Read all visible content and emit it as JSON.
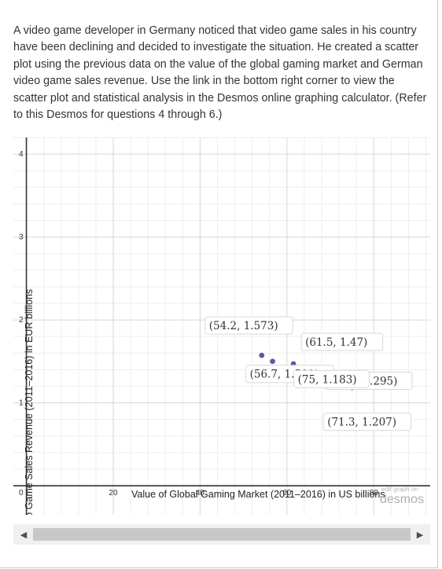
{
  "intro_text": "A video game developer in Germany noticed that video game sales in his country have been declining and decided to investigate the situation. He created a scatter plot using the previous data on the value of the global gaming market and German video game sales revenue. Use the link in the bottom right corner to view the scatter plot and statistical analysis in the Desmos online graphing calculator. (Refer to this Desmos for questions 4 through 6.)",
  "chart_data": {
    "type": "scatter",
    "xlabel": "Value of Global Gaming Market (2011–2016) in US billions",
    "ylabel": "German Video Game Sales Revenue (2011–2016) in EUR billions",
    "xlim": [
      -3,
      93
    ],
    "ylim": [
      -0.35,
      4.2
    ],
    "x_ticks": [
      20,
      40,
      60,
      80
    ],
    "y_ticks": [
      1,
      2,
      3,
      4
    ],
    "origin_label": "0",
    "grid": true,
    "point_color": "#6b4fae",
    "points": [
      {
        "x": 54.2,
        "y": 1.573,
        "label": "(54.2, 1.573)"
      },
      {
        "x": 56.7,
        "y": 1.501,
        "label": "(56.7, 1.501)"
      },
      {
        "x": 61.5,
        "y": 1.47,
        "label": "(61.5, 1.47)"
      },
      {
        "x": 67.2,
        "y": 1.295,
        "label": "(67.2, 1.295)"
      },
      {
        "x": 71.3,
        "y": 1.207,
        "label": "(71.3, 1.207)"
      },
      {
        "x": 75,
        "y": 1.183,
        "label": "(75, 1.183)"
      }
    ],
    "watermark_small": "edit graph on",
    "watermark": "desmos"
  },
  "scrollbar": {
    "left_arrow": "◀",
    "right_arrow": "▶"
  }
}
